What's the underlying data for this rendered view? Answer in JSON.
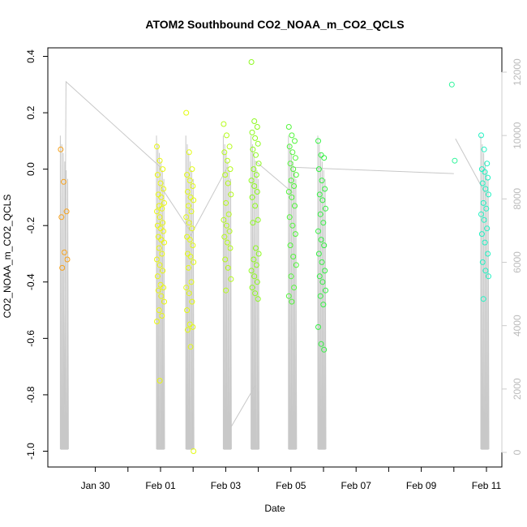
{
  "chart_data": {
    "type": "scatter",
    "title": "ATOM2 Southbound CO2_NOAA_m_CO2_QCLS",
    "xlabel": "Date",
    "ylabel": "CO2_NOAA_m_CO2_QCLS",
    "x_ticks": [
      "Jan 30",
      "Feb 01",
      "Feb 03",
      "Feb 05",
      "Feb 07",
      "Feb 09",
      "Feb 11"
    ],
    "y_ticks": [
      "-1.0",
      "-0.8",
      "-0.6",
      "-0.4",
      "-0.2",
      "0.0",
      "0.2",
      "0.4"
    ],
    "y2_ticks": [
      "0",
      "2000",
      "4000",
      "6000",
      "8000",
      "10000",
      "12000"
    ],
    "ylim": [
      -1.0,
      0.4
    ],
    "y2lim": [
      0,
      12000
    ],
    "grid": false,
    "secondary_series_color": "#c8c8c8",
    "clusters": [
      {
        "date": "Jan 29",
        "day_offset": -0.95,
        "color": "#f7a11a",
        "values": [
          0.07,
          -0.045,
          -0.15,
          -0.17,
          -0.295,
          -0.32,
          -0.35
        ]
      },
      {
        "date": "Feb 01",
        "day_offset": 2.0,
        "color": "#eaf80e",
        "values": [
          0.08,
          0.03,
          0.0,
          -0.02,
          -0.05,
          -0.07,
          -0.09,
          -0.1,
          -0.12,
          -0.13,
          -0.14,
          -0.15,
          -0.17,
          -0.19,
          -0.2,
          -0.21,
          -0.22,
          -0.24,
          -0.25,
          -0.26,
          -0.28,
          -0.3,
          -0.32,
          -0.34,
          -0.36,
          -0.38,
          -0.41,
          -0.42,
          -0.43,
          -0.45,
          -0.47,
          -0.5,
          -0.52,
          -0.54,
          -0.75
        ]
      },
      {
        "date": "Feb 01",
        "day_offset": 2.9,
        "color": "#e3fb12",
        "values": [
          0.2,
          0.06,
          0.0,
          -0.02,
          -0.04,
          -0.06,
          -0.08,
          -0.1,
          -0.11,
          -0.13,
          -0.15,
          -0.17,
          -0.19,
          -0.21,
          -0.24,
          -0.25,
          -0.27,
          -0.3,
          -0.31,
          -0.33,
          -0.35,
          -0.4,
          -0.42,
          -0.44,
          -0.47,
          -0.5,
          -0.55,
          -0.56,
          -0.57,
          -0.63,
          -1.0
        ]
      },
      {
        "date": "Feb 03",
        "day_offset": 4.05,
        "color": "#b5fb1a",
        "values": [
          0.16,
          0.12,
          0.08,
          0.06,
          0.03,
          0.0,
          -0.02,
          -0.05,
          -0.09,
          -0.12,
          -0.16,
          -0.18,
          -0.2,
          -0.22,
          -0.24,
          -0.26,
          -0.28,
          -0.32,
          -0.35,
          -0.39,
          -0.43
        ]
      },
      {
        "date": "Feb 03",
        "day_offset": 4.9,
        "color": "#8ef91f",
        "values": [
          0.38,
          0.17,
          0.15,
          0.13,
          0.11,
          0.09,
          0.07,
          0.05,
          0.02,
          0.0,
          -0.02,
          -0.04,
          -0.06,
          -0.08,
          -0.1,
          -0.13,
          -0.18,
          -0.19,
          -0.28,
          -0.3,
          -0.32,
          -0.34,
          -0.36,
          -0.38,
          -0.4,
          -0.42,
          -0.44,
          -0.46
        ]
      },
      {
        "date": "Feb 05",
        "day_offset": 6.05,
        "color": "#52f53a",
        "values": [
          0.15,
          0.12,
          0.1,
          0.08,
          0.06,
          0.04,
          0.02,
          0.0,
          -0.02,
          -0.04,
          -0.06,
          -0.08,
          -0.1,
          -0.13,
          -0.17,
          -0.2,
          -0.23,
          -0.27,
          -0.31,
          -0.34,
          -0.38,
          -0.42,
          -0.45,
          -0.47
        ]
      },
      {
        "date": "Feb 05",
        "day_offset": 6.95,
        "color": "#36f045",
        "values": [
          0.1,
          0.05,
          0.04,
          0.0,
          -0.04,
          -0.07,
          -0.09,
          -0.11,
          -0.14,
          -0.16,
          -0.19,
          -0.22,
          -0.25,
          -0.27,
          -0.3,
          -0.33,
          -0.36,
          -0.38,
          -0.4,
          -0.43,
          -0.45,
          -0.48,
          -0.56,
          -0.62,
          -0.64
        ]
      },
      {
        "date": "Feb 10",
        "day_offset": 11.05,
        "color": "#2df59a",
        "values": [
          0.3,
          0.03
        ]
      },
      {
        "date": "Feb 11",
        "day_offset": 11.95,
        "color": "#22f2c2",
        "values": [
          0.12,
          0.07,
          0.02,
          0.0,
          -0.01,
          -0.03,
          -0.05,
          -0.07,
          -0.09,
          -0.12,
          -0.14,
          -0.16,
          -0.18,
          -0.21,
          -0.23,
          -0.26,
          -0.3,
          -0.33,
          -0.36,
          -0.38,
          -0.46
        ]
      }
    ]
  }
}
